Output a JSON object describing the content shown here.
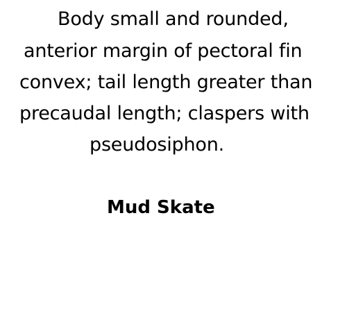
{
  "description_lines": [
    "Body small and rounded,",
    "anterior margin of pectoral fin",
    "convex; tail length greater than",
    "precaudal length; claspers with",
    "pseudosiphon."
  ],
  "species_name": "Mud Skate",
  "colors": {
    "background": "#ffffff",
    "text": "#000000"
  }
}
